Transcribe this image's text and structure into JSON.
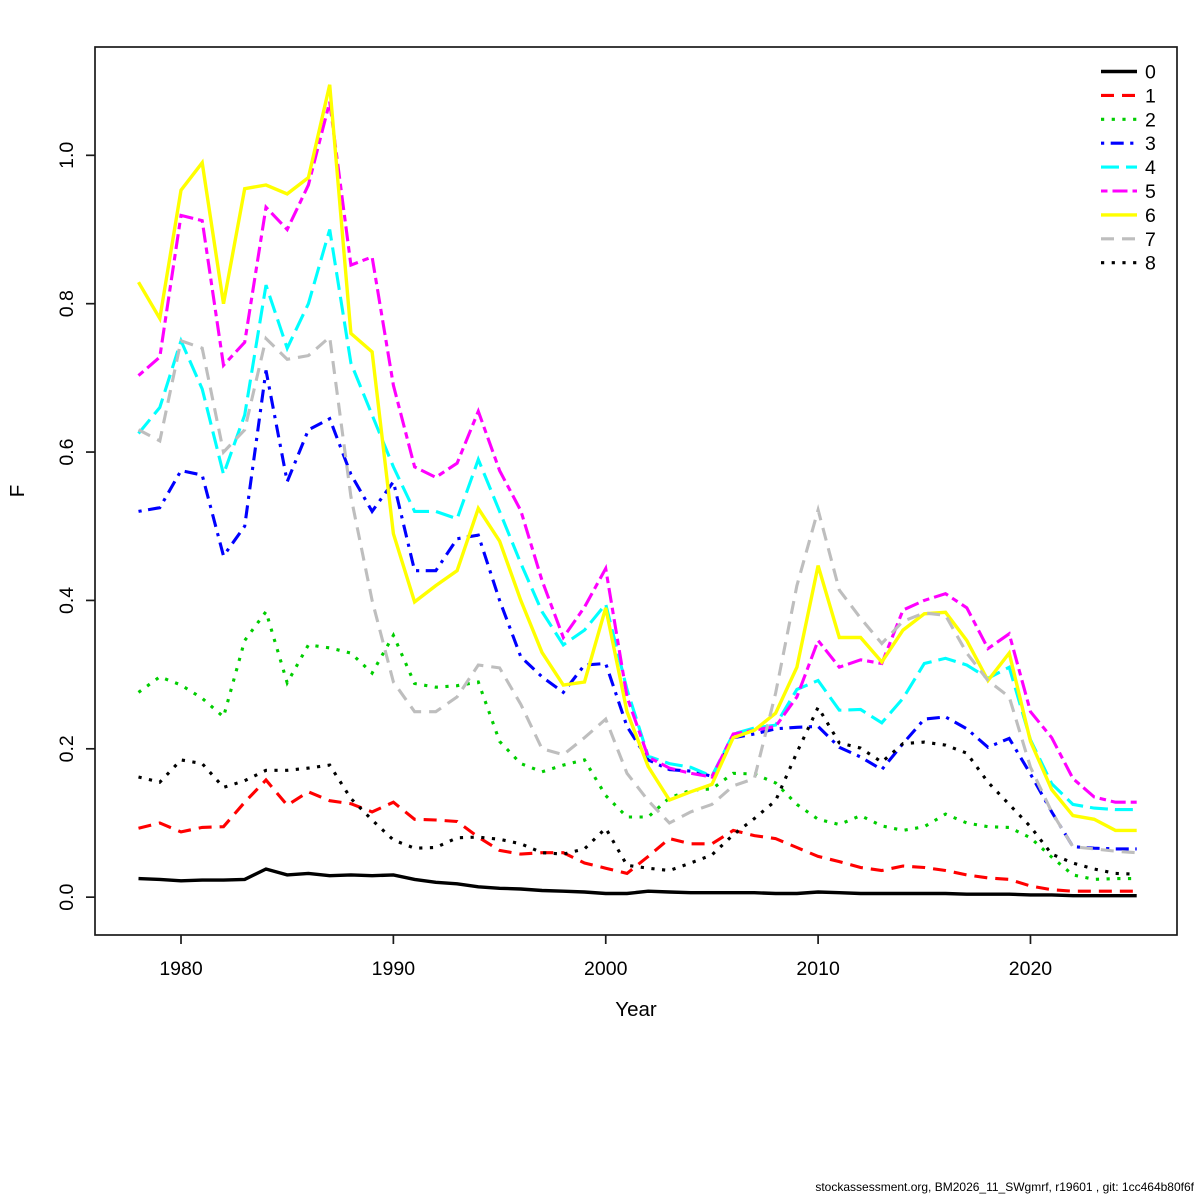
{
  "chart_data": {
    "type": "line",
    "title": "",
    "xlabel": "Year",
    "ylabel": "F",
    "grid": false,
    "legend_position": "top-right",
    "xlim": [
      1975.95,
      2026.9
    ],
    "ylim": [
      -0.051,
      1.146
    ],
    "x_ticks": [
      1980,
      1990,
      2000,
      2010,
      2020
    ],
    "y_ticks": [
      0.0,
      0.2,
      0.4,
      0.6,
      0.8,
      1.0
    ],
    "x": [
      1978,
      1979,
      1980,
      1981,
      1982,
      1983,
      1984,
      1985,
      1986,
      1987,
      1988,
      1989,
      1990,
      1991,
      1992,
      1993,
      1994,
      1995,
      1996,
      1997,
      1998,
      1999,
      2000,
      2001,
      2002,
      2003,
      2004,
      2005,
      2006,
      2007,
      2008,
      2009,
      2010,
      2011,
      2012,
      2013,
      2014,
      2015,
      2016,
      2017,
      2018,
      2019,
      2020,
      2021,
      2022,
      2023,
      2024,
      2025
    ],
    "series": [
      {
        "label": "0",
        "color": "#000000",
        "linestyle": "solid",
        "values": [
          0.025,
          0.024,
          0.022,
          0.023,
          0.023,
          0.024,
          0.038,
          0.03,
          0.032,
          0.029,
          0.03,
          0.029,
          0.03,
          0.024,
          0.02,
          0.018,
          0.014,
          0.012,
          0.011,
          0.009,
          0.008,
          0.007,
          0.005,
          0.005,
          0.008,
          0.007,
          0.006,
          0.006,
          0.006,
          0.006,
          0.005,
          0.005,
          0.007,
          0.006,
          0.005,
          0.005,
          0.005,
          0.005,
          0.005,
          0.004,
          0.004,
          0.004,
          0.003,
          0.003,
          0.002,
          0.002,
          0.002,
          0.002
        ]
      },
      {
        "label": "1",
        "color": "#FF0000",
        "linestyle": "dashed",
        "values": [
          0.093,
          0.1,
          0.088,
          0.094,
          0.095,
          0.128,
          0.158,
          0.124,
          0.142,
          0.13,
          0.126,
          0.115,
          0.128,
          0.105,
          0.104,
          0.102,
          0.081,
          0.063,
          0.058,
          0.06,
          0.06,
          0.046,
          0.039,
          0.032,
          0.055,
          0.079,
          0.072,
          0.072,
          0.09,
          0.083,
          0.079,
          0.067,
          0.055,
          0.048,
          0.04,
          0.036,
          0.042,
          0.04,
          0.036,
          0.03,
          0.026,
          0.024,
          0.015,
          0.01,
          0.008,
          0.008,
          0.008,
          0.008
        ]
      },
      {
        "label": "2",
        "color": "#00CD00",
        "linestyle": "dotted",
        "values": [
          0.276,
          0.297,
          0.286,
          0.268,
          0.243,
          0.346,
          0.385,
          0.289,
          0.34,
          0.336,
          0.329,
          0.302,
          0.353,
          0.288,
          0.283,
          0.285,
          0.29,
          0.21,
          0.18,
          0.169,
          0.178,
          0.185,
          0.137,
          0.108,
          0.108,
          0.134,
          0.144,
          0.146,
          0.167,
          0.166,
          0.154,
          0.125,
          0.105,
          0.098,
          0.11,
          0.096,
          0.09,
          0.095,
          0.112,
          0.1,
          0.095,
          0.094,
          0.08,
          0.054,
          0.03,
          0.024,
          0.025,
          0.025
        ]
      },
      {
        "label": "3",
        "color": "#0000FF",
        "linestyle": "dotdash",
        "values": [
          0.52,
          0.525,
          0.575,
          0.569,
          0.46,
          0.5,
          0.71,
          0.56,
          0.63,
          0.645,
          0.57,
          0.52,
          0.56,
          0.44,
          0.44,
          0.483,
          0.488,
          0.4,
          0.324,
          0.297,
          0.276,
          0.313,
          0.315,
          0.23,
          0.185,
          0.172,
          0.17,
          0.163,
          0.215,
          0.22,
          0.227,
          0.229,
          0.23,
          0.202,
          0.189,
          0.172,
          0.207,
          0.24,
          0.243,
          0.227,
          0.202,
          0.214,
          0.166,
          0.115,
          0.068,
          0.066,
          0.065,
          0.065
        ]
      },
      {
        "label": "4",
        "color": "#00FFFF",
        "linestyle": "longdash",
        "values": [
          0.625,
          0.66,
          0.75,
          0.685,
          0.57,
          0.65,
          0.825,
          0.74,
          0.8,
          0.9,
          0.72,
          0.65,
          0.58,
          0.52,
          0.52,
          0.51,
          0.59,
          0.52,
          0.45,
          0.385,
          0.34,
          0.36,
          0.395,
          0.28,
          0.19,
          0.18,
          0.175,
          0.163,
          0.22,
          0.228,
          0.232,
          0.28,
          0.292,
          0.252,
          0.253,
          0.235,
          0.268,
          0.315,
          0.322,
          0.313,
          0.295,
          0.31,
          0.212,
          0.153,
          0.125,
          0.12,
          0.118,
          0.118
        ]
      },
      {
        "label": "5",
        "color": "#FF00FF",
        "linestyle": "twodash",
        "values": [
          0.703,
          0.728,
          0.919,
          0.912,
          0.717,
          0.748,
          0.93,
          0.9,
          0.96,
          1.072,
          0.852,
          0.863,
          0.69,
          0.58,
          0.566,
          0.585,
          0.655,
          0.575,
          0.521,
          0.427,
          0.35,
          0.391,
          0.443,
          0.27,
          0.189,
          0.174,
          0.167,
          0.162,
          0.22,
          0.225,
          0.23,
          0.27,
          0.346,
          0.31,
          0.32,
          0.315,
          0.387,
          0.4,
          0.409,
          0.39,
          0.335,
          0.355,
          0.25,
          0.215,
          0.16,
          0.135,
          0.128,
          0.128
        ]
      },
      {
        "label": "6",
        "color": "#FFFF00",
        "linestyle": "solid",
        "values": [
          0.829,
          0.78,
          0.953,
          0.99,
          0.8,
          0.955,
          0.96,
          0.948,
          0.97,
          1.095,
          0.76,
          0.735,
          0.49,
          0.398,
          0.42,
          0.44,
          0.524,
          0.48,
          0.4,
          0.33,
          0.286,
          0.29,
          0.39,
          0.25,
          0.176,
          0.131,
          0.142,
          0.152,
          0.215,
          0.225,
          0.248,
          0.31,
          0.447,
          0.35,
          0.35,
          0.317,
          0.36,
          0.382,
          0.384,
          0.346,
          0.292,
          0.329,
          0.21,
          0.145,
          0.11,
          0.105,
          0.09,
          0.09
        ]
      },
      {
        "label": "7",
        "color": "#BEBEBE",
        "linestyle": "dashed",
        "values": [
          0.63,
          0.615,
          0.75,
          0.74,
          0.6,
          0.63,
          0.753,
          0.725,
          0.73,
          0.755,
          0.54,
          0.4,
          0.29,
          0.25,
          0.25,
          0.27,
          0.313,
          0.309,
          0.26,
          0.2,
          0.192,
          0.215,
          0.24,
          0.167,
          0.13,
          0.1,
          0.115,
          0.125,
          0.15,
          0.16,
          0.275,
          0.42,
          0.522,
          0.414,
          0.376,
          0.342,
          0.372,
          0.383,
          0.38,
          0.329,
          0.292,
          0.27,
          0.175,
          0.115,
          0.068,
          0.065,
          0.062,
          0.06
        ]
      },
      {
        "label": "8",
        "color": "#000000",
        "linestyle": "dotted",
        "values": [
          0.162,
          0.155,
          0.185,
          0.18,
          0.148,
          0.157,
          0.171,
          0.171,
          0.174,
          0.178,
          0.133,
          0.104,
          0.077,
          0.066,
          0.067,
          0.08,
          0.081,
          0.078,
          0.072,
          0.06,
          0.058,
          0.065,
          0.093,
          0.043,
          0.039,
          0.036,
          0.046,
          0.057,
          0.084,
          0.106,
          0.13,
          0.195,
          0.256,
          0.208,
          0.201,
          0.182,
          0.207,
          0.209,
          0.205,
          0.194,
          0.155,
          0.125,
          0.095,
          0.058,
          0.046,
          0.038,
          0.032,
          0.031
        ]
      }
    ]
  },
  "footer": {
    "text": "stockassessment.org, BM2026_11_SWgmrf, r19601 , git: 1cc464b80f6f"
  }
}
